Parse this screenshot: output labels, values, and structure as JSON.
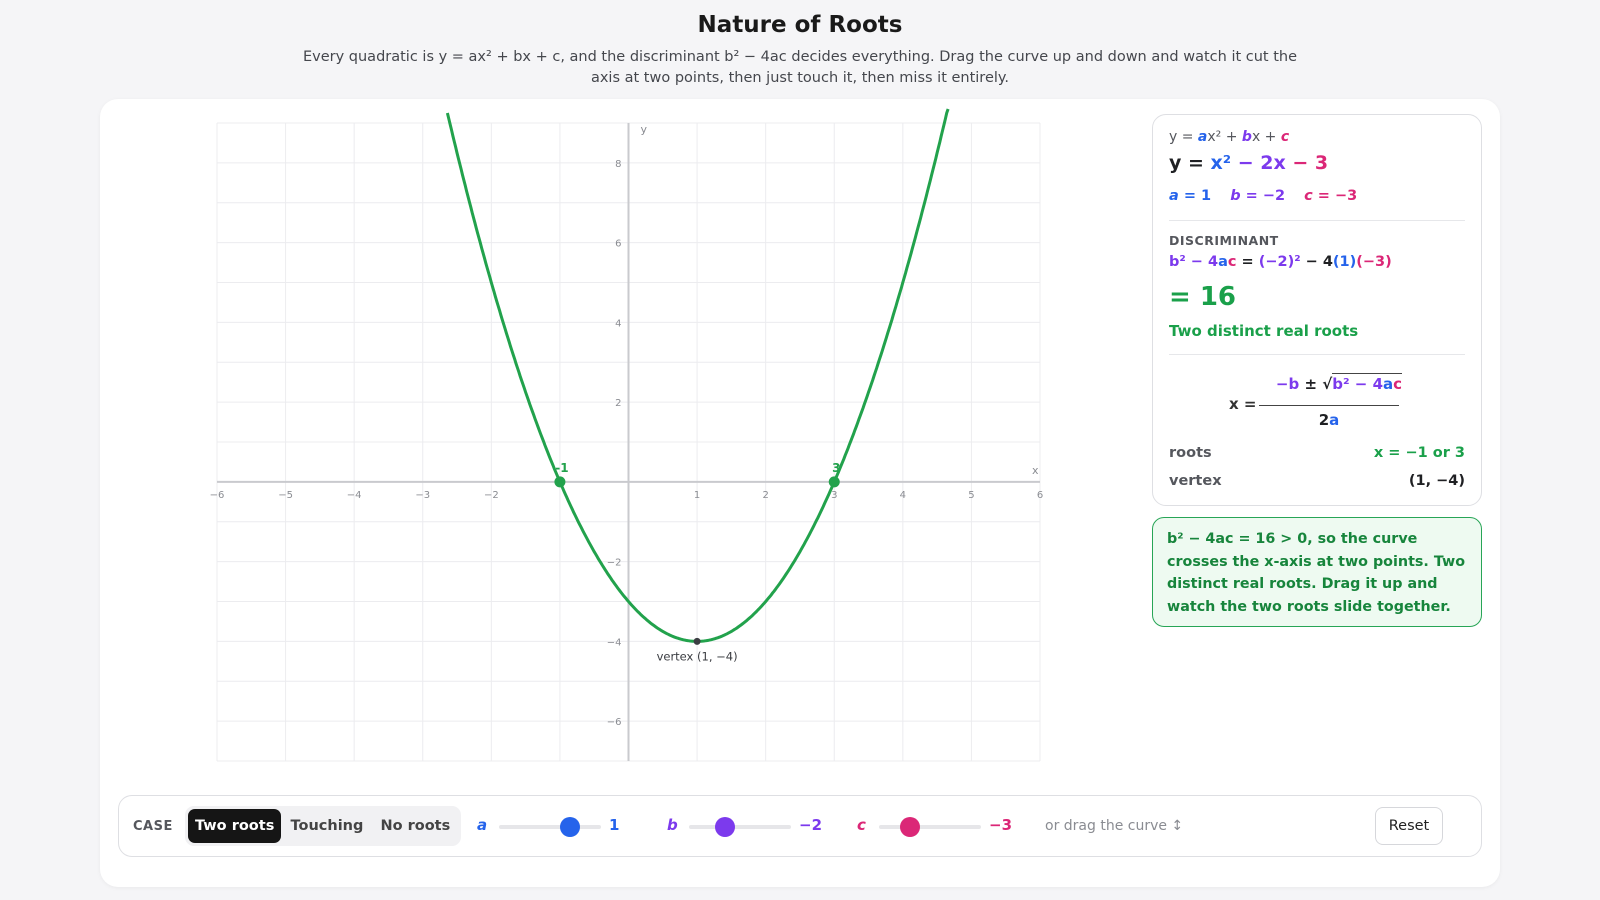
{
  "title": "Nature of Roots",
  "subtitle": "Every quadratic is y = ax² + bx + c, and the discriminant b² − 4ac decides everything. Drag the curve up and down and watch it cut the axis at two points, then just touch it, then miss it entirely.",
  "colors": {
    "a": "#2563eb",
    "b": "#7c3aed",
    "c": "#db2777",
    "curve": "#22a24c",
    "green_text": "#1aa04a"
  },
  "plot": {
    "x_axis_label": "x",
    "y_axis_label": "y",
    "x_range": [
      -6,
      6
    ],
    "y_range": [
      -7,
      9
    ],
    "x_ticks": [
      -6,
      -5,
      -4,
      -3,
      -2,
      1,
      2,
      3,
      4,
      5,
      6
    ],
    "y_ticks": [
      8,
      6,
      4,
      2,
      -2,
      -4,
      -6
    ],
    "curve": {
      "a": 1,
      "b": -2,
      "c": -3
    },
    "roots": [
      {
        "x": -1,
        "label": "-1"
      },
      {
        "x": 3,
        "label": "3"
      }
    ],
    "vertex": {
      "x": 1,
      "y": -4,
      "label": "vertex (1, −4)"
    }
  },
  "panel": {
    "eq_template": {
      "y": "y = ",
      "a": "a",
      "x2": "x² + ",
      "b": "b",
      "x": "x + ",
      "c": "c"
    },
    "eq_main": {
      "lead": "y = ",
      "t1": "x²",
      "t2": " − 2x",
      "t3": " − 3"
    },
    "coefs": {
      "a_name": "a",
      "a_val": " = 1",
      "b_name": "b",
      "b_val": " = −2",
      "c_name": "c",
      "c_val": " = −3"
    },
    "disc_label": "DISCRIMINANT",
    "disc_formula": {
      "lhs_b": "b² − 4",
      "lhs_a": "a",
      "lhs_c": "c",
      "eq": " = ",
      "bsq": "(−2)²",
      "minus4": " − 4",
      "aval": "(1)",
      "cval": "(−3)"
    },
    "disc_value": "= 16",
    "disc_verdict": "Two distinct real roots",
    "qf": {
      "x_eq": "x =",
      "neg_b": "−b",
      "pm": " ± ",
      "sqrt": "√",
      "b2": "b² − 4",
      "a": "a",
      "c": "c",
      "den_2": "2",
      "den_a": "a"
    },
    "roots_label": "roots",
    "roots_value": "x = −1 or 3",
    "vertex_label": "vertex",
    "vertex_value": "(1, −4)"
  },
  "note": "b² − 4ac = 16 > 0, so the curve crosses the x-axis at two points. Two distinct real roots. Drag it up and watch the two roots slide together.",
  "controls": {
    "case_label": "CASE",
    "cases": [
      "Two roots",
      "Touching",
      "No roots"
    ],
    "active_case": "Two roots",
    "sliders": [
      {
        "name": "a",
        "value": "1",
        "level": 0.7
      },
      {
        "name": "b",
        "value": "−2",
        "level": 0.35
      },
      {
        "name": "c",
        "value": "−3",
        "level": 0.3
      }
    ],
    "drag_hint": "or drag the curve ↕",
    "reset_label": "Reset"
  }
}
